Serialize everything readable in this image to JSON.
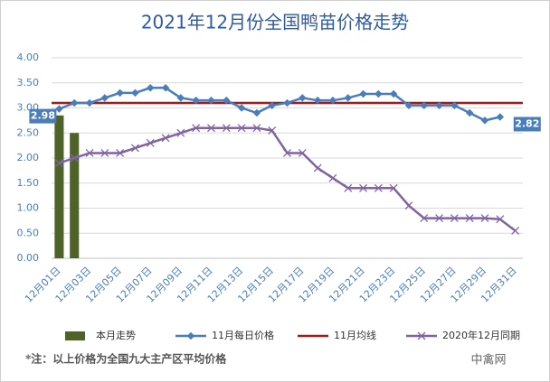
{
  "chart_data": {
    "type": "combo",
    "title": "2021年12月份全国鸭苗价格走势",
    "categories": [
      "12月01日",
      null,
      "12月03日",
      null,
      "12月05日",
      null,
      "12月07日",
      null,
      "12月09日",
      null,
      "12月11日",
      null,
      "12月13日",
      null,
      "12月15日",
      null,
      "12月17日",
      null,
      "12月19日",
      null,
      "12月21日",
      null,
      "12月23日",
      null,
      "12月25日",
      null,
      "12月27日",
      null,
      "12月29日",
      null,
      "12月31日"
    ],
    "ylim": [
      0,
      4
    ],
    "yticks": [
      {
        "value": 0,
        "label": "0.00"
      },
      {
        "value": 0.5,
        "label": "0.50"
      },
      {
        "value": 1,
        "label": "1.00"
      },
      {
        "value": 1.5,
        "label": "1.50"
      },
      {
        "value": 2,
        "label": "2.00"
      },
      {
        "value": 2.5,
        "label": "2.50"
      },
      {
        "value": 3,
        "label": "3.00"
      },
      {
        "value": 3.5,
        "label": "3.50"
      },
      {
        "value": 4,
        "label": "4.00"
      }
    ],
    "grid": true,
    "legend": "bottom",
    "series": [
      {
        "name": "本月走势",
        "type": "bar",
        "color": "#4f6228",
        "values": [
          2.85,
          2.5,
          null,
          null,
          null,
          null,
          null,
          null,
          null,
          null,
          null,
          null,
          null,
          null,
          null,
          null,
          null,
          null,
          null,
          null,
          null,
          null,
          null,
          null,
          null,
          null,
          null,
          null,
          null,
          null,
          null
        ]
      },
      {
        "name": "11月每日价格",
        "type": "line",
        "marker": "diamond",
        "color": "#4a7ebb",
        "values": [
          2.98,
          3.1,
          3.1,
          3.2,
          3.3,
          3.3,
          3.4,
          3.4,
          3.2,
          3.15,
          3.15,
          3.15,
          3.0,
          2.9,
          3.05,
          3.1,
          3.2,
          3.15,
          3.15,
          3.2,
          3.28,
          3.28,
          3.28,
          3.05,
          3.05,
          3.05,
          3.05,
          2.9,
          2.75,
          2.82,
          null
        ]
      },
      {
        "name": "11月均线",
        "type": "hline",
        "color": "#a31b1b",
        "value": 3.1
      },
      {
        "name": "2020年12月同期",
        "type": "line",
        "marker": "x",
        "color": "#8064a2",
        "values": [
          1.9,
          2.0,
          2.1,
          2.1,
          2.1,
          2.2,
          2.3,
          2.4,
          2.5,
          2.6,
          2.6,
          2.6,
          2.6,
          2.6,
          2.55,
          2.1,
          2.1,
          1.8,
          1.6,
          1.4,
          1.4,
          1.4,
          1.4,
          1.05,
          0.8,
          0.8,
          0.8,
          0.8,
          0.8,
          0.78,
          0.55
        ]
      }
    ],
    "annotations": [
      "2.98",
      "2.82"
    ],
    "note": "*注：以上价格为全国九大主产区平均价格"
  },
  "watermark": "中禽网"
}
